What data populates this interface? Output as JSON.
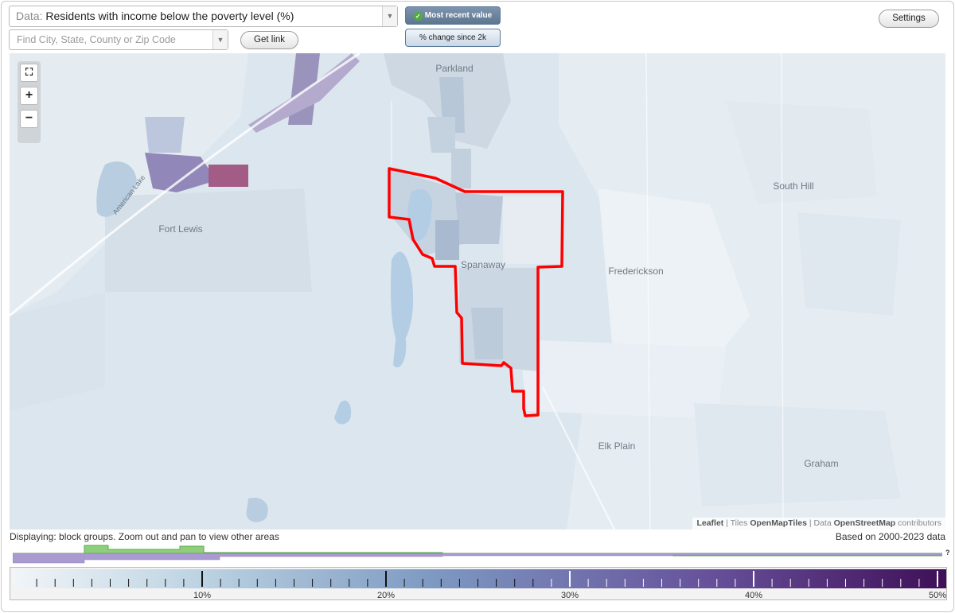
{
  "data_selector": {
    "prefix": "Data:",
    "value": "Residents with income below the poverty level (%)"
  },
  "search": {
    "placeholder": "Find City, State, County or Zip Code"
  },
  "buttons": {
    "get_link": "Get link",
    "most_recent": "Most recent value",
    "change_since": "% change since 2k",
    "settings": "Settings"
  },
  "zoom": {
    "fullscreen_icon": "fullscreen-icon",
    "plus": "+",
    "minus": "−"
  },
  "places": {
    "parkland": "Parkland",
    "fort_lewis": "Fort Lewis",
    "south_hill": "South Hill",
    "spanaway": "Spanaway",
    "frederickson": "Frederickson",
    "elk_plain": "Elk Plain",
    "graham": "Graham",
    "american_lake": "American Lake"
  },
  "attribution": {
    "leaflet": "Leaflet",
    "tiles_prefix": " | Tiles ",
    "tiles": "OpenMapTiles",
    "data_prefix": " | Data ",
    "data": "OpenStreetMap",
    "contributors": " contributors"
  },
  "status": {
    "displaying": "Displaying: block groups. Zoom out and pan to view other areas",
    "based_on": "Based on 2000-2023 data"
  },
  "histogram": {
    "unknown_marker": "?"
  },
  "legend": {
    "labels": [
      "10%",
      "20%",
      "30%",
      "40%",
      "50%"
    ],
    "colors": [
      "#e9eff3",
      "#a8c4d9",
      "#7a93bd",
      "#6c5aa0",
      "#45155a"
    ],
    "outline_color": "#ff0000"
  }
}
